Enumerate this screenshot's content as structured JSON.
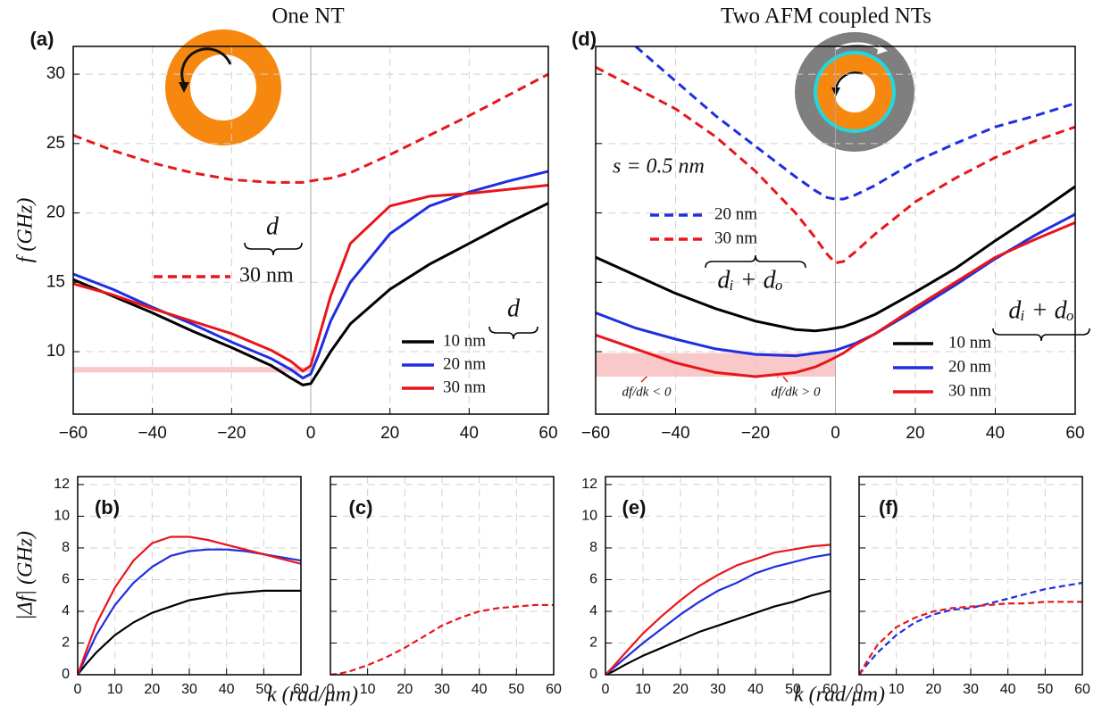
{
  "chart_data": [
    {
      "type": "line",
      "title": "One NT",
      "panel": "(a)",
      "ylabel": "f (GHz)",
      "x": [
        -60,
        -50,
        -40,
        -30,
        -20,
        -10,
        -5,
        -2,
        0,
        2,
        5,
        10,
        20,
        30,
        40,
        50,
        60
      ],
      "series": [
        {
          "name": "10 nm",
          "color": "#000000",
          "values": [
            15.2,
            14.0,
            12.8,
            11.5,
            10.3,
            9.0,
            8.1,
            7.6,
            7.7,
            8.6,
            10.0,
            12.0,
            14.5,
            16.3,
            17.8,
            19.3,
            20.7
          ]
        },
        {
          "name": "20 nm",
          "color": "#1f2fe0",
          "values": [
            15.6,
            14.5,
            13.2,
            12.0,
            10.7,
            9.5,
            8.7,
            8.1,
            8.4,
            9.8,
            12.2,
            15.0,
            18.5,
            20.5,
            21.5,
            22.3,
            23.0
          ]
        },
        {
          "name": "30 nm",
          "color": "#e8161b",
          "values": [
            14.9,
            14.1,
            13.1,
            12.2,
            11.3,
            10.1,
            9.3,
            8.6,
            9.0,
            11.0,
            14.0,
            17.8,
            20.5,
            21.2,
            21.4,
            21.7,
            22.0
          ]
        },
        {
          "name": "30 nm",
          "color": "#e8161b",
          "dash": true,
          "values": [
            25.6,
            24.5,
            23.6,
            22.9,
            22.4,
            22.2,
            22.2,
            22.2,
            22.3,
            22.4,
            22.5,
            22.9,
            24.2,
            25.6,
            27.0,
            28.5,
            30.0
          ]
        }
      ],
      "legend_title": "d",
      "dashed_legend_title": "d",
      "highlight": {
        "x": [
          -60,
          0
        ],
        "y": [
          8.5,
          8.9
        ],
        "color": "#f9c9c9"
      },
      "xlim": [
        -60,
        60
      ],
      "ylim": [
        5.5,
        32
      ],
      "xticks": [
        {
          "value": -60,
          "label": "−60"
        },
        {
          "value": -40,
          "label": "−40"
        },
        {
          "value": -20,
          "label": "−20"
        },
        0,
        20,
        40,
        60
      ],
      "yticks": [
        10,
        15,
        20,
        25,
        30
      ],
      "grid": true,
      "zero_line": true
    },
    {
      "type": "line",
      "title": "Two AFM coupled NTs",
      "panel": "(d)",
      "x": [
        -60,
        -50,
        -40,
        -30,
        -20,
        -10,
        -5,
        -2,
        0,
        2,
        5,
        10,
        20,
        30,
        40,
        50,
        60
      ],
      "series": [
        {
          "name": "10 nm",
          "color": "#000000",
          "values": [
            16.8,
            15.5,
            14.2,
            13.1,
            12.2,
            11.6,
            11.5,
            11.6,
            11.7,
            11.8,
            12.1,
            12.7,
            14.3,
            16.0,
            18.0,
            19.9,
            21.9
          ]
        },
        {
          "name": "20 nm",
          "color": "#1f2fe0",
          "values": [
            12.8,
            11.7,
            10.9,
            10.2,
            9.8,
            9.7,
            9.9,
            10.0,
            10.1,
            10.3,
            10.6,
            11.3,
            13.0,
            14.8,
            16.7,
            18.4,
            19.9
          ]
        },
        {
          "name": "30 nm",
          "color": "#e8161b",
          "values": [
            11.2,
            10.2,
            9.2,
            8.5,
            8.2,
            8.5,
            8.9,
            9.3,
            9.6,
            9.9,
            10.5,
            11.3,
            13.2,
            15.0,
            16.8,
            18.1,
            19.3
          ]
        },
        {
          "name": "20 nm",
          "color": "#1f2fe0",
          "dash": true,
          "values": [
            null,
            32.0,
            29.5,
            27.0,
            24.8,
            22.6,
            21.6,
            21.1,
            21.0,
            21.0,
            21.3,
            22.0,
            23.7,
            25.0,
            26.2,
            27.0,
            27.9
          ]
        },
        {
          "name": "30 nm",
          "color": "#e8161b",
          "dash": true,
          "values": [
            30.5,
            29.0,
            27.5,
            25.5,
            23.0,
            20.0,
            18.2,
            17.0,
            16.4,
            16.5,
            17.2,
            18.5,
            20.8,
            22.5,
            24.0,
            25.2,
            26.2
          ]
        }
      ],
      "legend_title": "dᵢ + dₒ",
      "dashed_legend_title": "dᵢ + dₒ",
      "annotations": [
        "s = 0.5 nm",
        "df/dk < 0",
        "df/dk > 0"
      ],
      "highlight": {
        "x": [
          -60,
          0
        ],
        "y": [
          8.2,
          9.9
        ],
        "color": "#f9c9c9"
      },
      "xlim": [
        -60,
        60
      ],
      "ylim": [
        5.5,
        32
      ],
      "xticks": [
        {
          "value": -60,
          "label": "−60"
        },
        {
          "value": -40,
          "label": "−40"
        },
        {
          "value": -20,
          "label": "−20"
        },
        0,
        20,
        40,
        60
      ],
      "yticks": [
        10,
        15,
        20,
        25,
        30
      ],
      "ytick_labels": false,
      "grid": true,
      "zero_line": true
    },
    {
      "type": "line",
      "panel": "(b)",
      "ylabel": "|Δf| (GHz)",
      "xlabel": "k (rad/μm)",
      "x": [
        0,
        2,
        5,
        10,
        15,
        20,
        25,
        30,
        35,
        40,
        45,
        50,
        55,
        60
      ],
      "series": [
        {
          "color": "#000000",
          "values": [
            0,
            0.6,
            1.4,
            2.5,
            3.3,
            3.9,
            4.3,
            4.7,
            4.9,
            5.1,
            5.2,
            5.3,
            5.3,
            5.3
          ]
        },
        {
          "color": "#1f2fe0",
          "values": [
            0,
            1.0,
            2.5,
            4.4,
            5.8,
            6.8,
            7.5,
            7.8,
            7.9,
            7.9,
            7.8,
            7.6,
            7.4,
            7.2
          ]
        },
        {
          "color": "#e8161b",
          "values": [
            0,
            1.3,
            3.2,
            5.5,
            7.2,
            8.3,
            8.7,
            8.7,
            8.5,
            8.2,
            7.9,
            7.6,
            7.3,
            7.0
          ]
        }
      ],
      "xlim": [
        0,
        60
      ],
      "ylim": [
        0,
        12.5
      ],
      "xticks": [
        0,
        10,
        20,
        30,
        40,
        50,
        60
      ],
      "yticks": [
        0,
        2,
        4,
        6,
        8,
        10,
        12
      ],
      "grid": true
    },
    {
      "type": "line",
      "panel": "(c)",
      "x": [
        0,
        2,
        5,
        10,
        15,
        20,
        25,
        30,
        35,
        40,
        45,
        50,
        55,
        60
      ],
      "series": [
        {
          "color": "#e8161b",
          "dash": true,
          "values": [
            0,
            0.05,
            0.2,
            0.6,
            1.1,
            1.7,
            2.4,
            3.1,
            3.6,
            4.0,
            4.2,
            4.3,
            4.4,
            4.4
          ]
        }
      ],
      "xlim": [
        0,
        60
      ],
      "ylim": [
        0,
        12.5
      ],
      "xticks": [
        0,
        10,
        20,
        30,
        40,
        50,
        60
      ],
      "yticks": [
        0,
        2,
        4,
        6,
        8,
        10,
        12
      ],
      "ytick_labels": false,
      "grid": true
    },
    {
      "type": "line",
      "panel": "(e)",
      "xlabel": "k (rad/μm)",
      "x": [
        0,
        2,
        5,
        10,
        15,
        20,
        25,
        30,
        35,
        40,
        45,
        50,
        55,
        60
      ],
      "series": [
        {
          "color": "#000000",
          "values": [
            0,
            0.2,
            0.6,
            1.2,
            1.7,
            2.2,
            2.7,
            3.1,
            3.5,
            3.9,
            4.3,
            4.6,
            5.0,
            5.3
          ]
        },
        {
          "color": "#1f2fe0",
          "values": [
            0,
            0.4,
            1.0,
            2.0,
            2.9,
            3.8,
            4.6,
            5.3,
            5.8,
            6.4,
            6.8,
            7.1,
            7.4,
            7.6
          ]
        },
        {
          "color": "#e8161b",
          "values": [
            0,
            0.5,
            1.3,
            2.6,
            3.7,
            4.7,
            5.6,
            6.3,
            6.9,
            7.3,
            7.7,
            7.9,
            8.1,
            8.2
          ]
        }
      ],
      "xlim": [
        0,
        60
      ],
      "ylim": [
        0,
        12.5
      ],
      "xticks": [
        0,
        10,
        20,
        30,
        40,
        50,
        60
      ],
      "yticks": [
        0,
        2,
        4,
        6,
        8,
        10,
        12
      ],
      "grid": true
    },
    {
      "type": "line",
      "panel": "(f)",
      "x": [
        0,
        2,
        5,
        10,
        15,
        20,
        25,
        30,
        35,
        40,
        45,
        50,
        55,
        60
      ],
      "series": [
        {
          "color": "#1f2fe0",
          "dash": true,
          "values": [
            0,
            0.6,
            1.4,
            2.5,
            3.3,
            3.8,
            4.1,
            4.2,
            4.5,
            4.8,
            5.1,
            5.4,
            5.6,
            5.8
          ]
        },
        {
          "color": "#e8161b",
          "dash": true,
          "values": [
            0,
            0.8,
            1.9,
            3.0,
            3.6,
            4.0,
            4.2,
            4.3,
            4.4,
            4.5,
            4.5,
            4.6,
            4.6,
            4.6
          ]
        }
      ],
      "xlim": [
        0,
        60
      ],
      "ylim": [
        0,
        12.5
      ],
      "xticks": [
        0,
        10,
        20,
        30,
        40,
        50,
        60
      ],
      "yticks": [
        0,
        2,
        4,
        6,
        8,
        10,
        12
      ],
      "ytick_labels": false,
      "grid": true
    }
  ]
}
